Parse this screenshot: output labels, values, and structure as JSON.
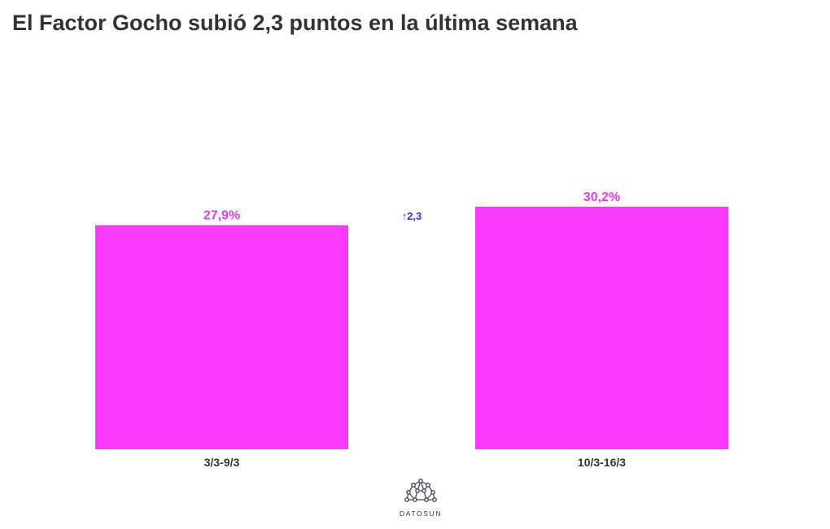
{
  "title": "El Factor Gocho subió 2,3 puntos en la última semana",
  "chart_data": {
    "type": "bar",
    "categories": [
      "3/3-9/3",
      "10/3-16/3"
    ],
    "values": [
      27.9,
      30.2
    ],
    "value_labels": [
      "27,9%",
      "30,2%"
    ],
    "ylim": [
      0,
      30.2
    ],
    "grid": false,
    "xlabel": "",
    "ylabel": "",
    "annotation": {
      "arrow": "↑",
      "text": "2,3"
    }
  },
  "colors": {
    "bar": "#f73bf8",
    "value_label": "#e33fe0",
    "annotation": "#4a2bd1",
    "title": "#333333"
  },
  "logo": {
    "icon": "network-nodes-icon",
    "text": "DATOSUN"
  }
}
